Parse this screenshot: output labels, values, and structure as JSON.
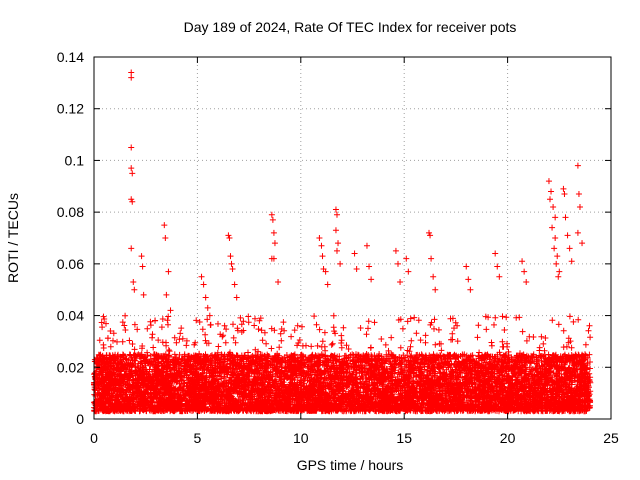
{
  "chart_data": {
    "type": "scatter",
    "title": "Day 189 of 2024, Rate Of TEC Index for receiver pots",
    "xlabel": "GPS time / hours",
    "ylabel": "ROTI / TECUs",
    "xlim": [
      0,
      25
    ],
    "ylim": [
      0,
      0.14
    ],
    "xticks": [
      0,
      5,
      10,
      15,
      20,
      25
    ],
    "xtick_labels": [
      "0",
      "5",
      "10",
      "15",
      "20",
      "25"
    ],
    "yticks": [
      0,
      0.02,
      0.04,
      0.06,
      0.08,
      0.1,
      0.12,
      0.14
    ],
    "ytick_labels": [
      "0",
      "0.02",
      "0.04",
      "0.06",
      "0.08",
      "0.1",
      "0.12",
      "0.14"
    ],
    "grid": true,
    "marker": "+",
    "color": "#ff0000",
    "series": [
      {
        "name": "ROTI",
        "points": [
          [
            1.8,
            0.134
          ],
          [
            1.8,
            0.132
          ],
          [
            1.8,
            0.105
          ],
          [
            1.8,
            0.097
          ],
          [
            1.85,
            0.095
          ],
          [
            1.8,
            0.085
          ],
          [
            1.85,
            0.084
          ],
          [
            1.8,
            0.066
          ],
          [
            2.3,
            0.063
          ],
          [
            2.35,
            0.059
          ],
          [
            1.9,
            0.053
          ],
          [
            1.95,
            0.05
          ],
          [
            2.4,
            0.048
          ],
          [
            3.4,
            0.075
          ],
          [
            3.45,
            0.07
          ],
          [
            3.6,
            0.057
          ],
          [
            3.5,
            0.048
          ],
          [
            3.7,
            0.042
          ],
          [
            5.2,
            0.055
          ],
          [
            5.3,
            0.052
          ],
          [
            5.4,
            0.047
          ],
          [
            5.5,
            0.043
          ],
          [
            5.6,
            0.04
          ],
          [
            6.5,
            0.071
          ],
          [
            6.55,
            0.07
          ],
          [
            6.6,
            0.063
          ],
          [
            6.65,
            0.06
          ],
          [
            6.7,
            0.058
          ],
          [
            6.8,
            0.052
          ],
          [
            6.9,
            0.047
          ],
          [
            8.6,
            0.079
          ],
          [
            8.65,
            0.077
          ],
          [
            8.7,
            0.072
          ],
          [
            8.75,
            0.068
          ],
          [
            8.6,
            0.062
          ],
          [
            8.7,
            0.062
          ],
          [
            8.9,
            0.053
          ],
          [
            10.9,
            0.07
          ],
          [
            11.0,
            0.067
          ],
          [
            11.05,
            0.063
          ],
          [
            11.1,
            0.058
          ],
          [
            11.2,
            0.057
          ],
          [
            11.3,
            0.052
          ],
          [
            11.7,
            0.081
          ],
          [
            11.75,
            0.079
          ],
          [
            11.7,
            0.073
          ],
          [
            11.8,
            0.068
          ],
          [
            11.75,
            0.065
          ],
          [
            11.9,
            0.06
          ],
          [
            12.6,
            0.064
          ],
          [
            12.7,
            0.058
          ],
          [
            13.2,
            0.067
          ],
          [
            13.3,
            0.059
          ],
          [
            13.4,
            0.054
          ],
          [
            14.6,
            0.065
          ],
          [
            14.7,
            0.06
          ],
          [
            14.8,
            0.053
          ],
          [
            15.1,
            0.062
          ],
          [
            15.2,
            0.057
          ],
          [
            16.2,
            0.072
          ],
          [
            16.25,
            0.071
          ],
          [
            16.3,
            0.062
          ],
          [
            16.4,
            0.055
          ],
          [
            16.5,
            0.05
          ],
          [
            18.0,
            0.059
          ],
          [
            18.1,
            0.054
          ],
          [
            18.2,
            0.05
          ],
          [
            19.4,
            0.064
          ],
          [
            19.5,
            0.059
          ],
          [
            19.6,
            0.055
          ],
          [
            20.7,
            0.061
          ],
          [
            20.8,
            0.057
          ],
          [
            20.9,
            0.053
          ],
          [
            22.0,
            0.092
          ],
          [
            22.1,
            0.088
          ],
          [
            22.05,
            0.085
          ],
          [
            22.2,
            0.082
          ],
          [
            22.3,
            0.078
          ],
          [
            22.15,
            0.074
          ],
          [
            22.3,
            0.07
          ],
          [
            22.25,
            0.066
          ],
          [
            22.4,
            0.063
          ],
          [
            22.35,
            0.06
          ],
          [
            22.5,
            0.057
          ],
          [
            22.45,
            0.055
          ],
          [
            22.7,
            0.089
          ],
          [
            22.75,
            0.087
          ],
          [
            22.8,
            0.078
          ],
          [
            22.9,
            0.071
          ],
          [
            23.0,
            0.066
          ],
          [
            23.1,
            0.061
          ],
          [
            23.4,
            0.098
          ],
          [
            23.45,
            0.087
          ],
          [
            23.5,
            0.082
          ],
          [
            23.4,
            0.072
          ],
          [
            23.6,
            0.068
          ]
        ],
        "band": {
          "x_range": [
            0,
            24
          ],
          "y_floor": 0.003,
          "y_typical_max": 0.025,
          "y_occasional_max": 0.04
        }
      }
    ]
  }
}
